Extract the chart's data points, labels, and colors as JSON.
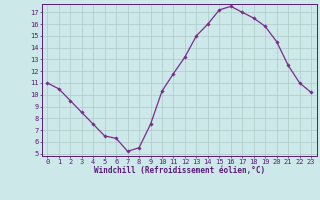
{
  "x": [
    0,
    1,
    2,
    3,
    4,
    5,
    6,
    7,
    8,
    9,
    10,
    11,
    12,
    13,
    14,
    15,
    16,
    17,
    18,
    19,
    20,
    21,
    22,
    23
  ],
  "y": [
    11,
    10.5,
    9.5,
    8.5,
    7.5,
    6.5,
    6.3,
    5.2,
    5.5,
    7.5,
    10.3,
    11.8,
    13.2,
    15.0,
    16.0,
    17.2,
    17.5,
    17.0,
    16.5,
    15.8,
    14.5,
    12.5,
    11.0,
    10.2
  ],
  "line_color": "#7b2d8b",
  "marker": "D",
  "markersize": 1.8,
  "linewidth": 0.9,
  "xlabel": "Windchill (Refroidissement éolien,°C)",
  "xlabel_fontsize": 5.5,
  "bg_color": "#cce8e8",
  "grid_color": "#b0c8c8",
  "xlim": [
    -0.5,
    23.5
  ],
  "ylim": [
    4.8,
    17.7
  ],
  "yticks": [
    5,
    6,
    7,
    8,
    9,
    10,
    11,
    12,
    13,
    14,
    15,
    16,
    17
  ],
  "xticks": [
    0,
    1,
    2,
    3,
    4,
    5,
    6,
    7,
    8,
    9,
    10,
    11,
    12,
    13,
    14,
    15,
    16,
    17,
    18,
    19,
    20,
    21,
    22,
    23
  ],
  "tick_fontsize": 5.0,
  "axis_color": "#5b1a7b",
  "spine_color": "#5b1a7b"
}
